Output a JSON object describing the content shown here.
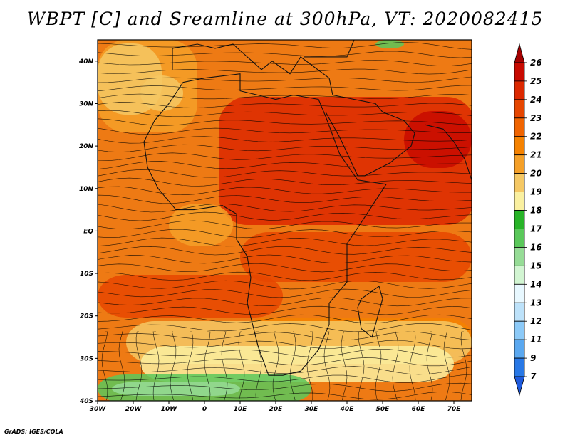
{
  "title": "WBPT [C] and Sreamline at 300hPa, VT: 2020082415",
  "credit": "GrADS: IGES/COLA",
  "map": {
    "lon_ticks": [
      "30W",
      "20W",
      "10W",
      "0",
      "10E",
      "20E",
      "30E",
      "40E",
      "50E",
      "60E",
      "70E"
    ],
    "lat_ticks": [
      "40N",
      "30N",
      "20N",
      "10N",
      "EQ",
      "10S",
      "20S",
      "30S",
      "40S"
    ],
    "lon_range": [
      -30,
      75
    ],
    "lat_range": [
      -40,
      45
    ]
  },
  "colorbar": {
    "labels": [
      "26",
      "25",
      "24",
      "23",
      "22",
      "21",
      "20",
      "19",
      "18",
      "17",
      "16",
      "15",
      "14",
      "13",
      "12",
      "11",
      "9",
      "7"
    ],
    "colors": [
      "#a50000",
      "#c80a00",
      "#dc2800",
      "#e64600",
      "#f06400",
      "#f58200",
      "#f5a028",
      "#f5c864",
      "#faf0a0",
      "#28b428",
      "#5ac85a",
      "#96dc96",
      "#d2f5d2",
      "#e8f8ff",
      "#bde2fa",
      "#8ccaf8",
      "#5aa8f0",
      "#2878e6",
      "#1e5adc"
    ]
  }
}
